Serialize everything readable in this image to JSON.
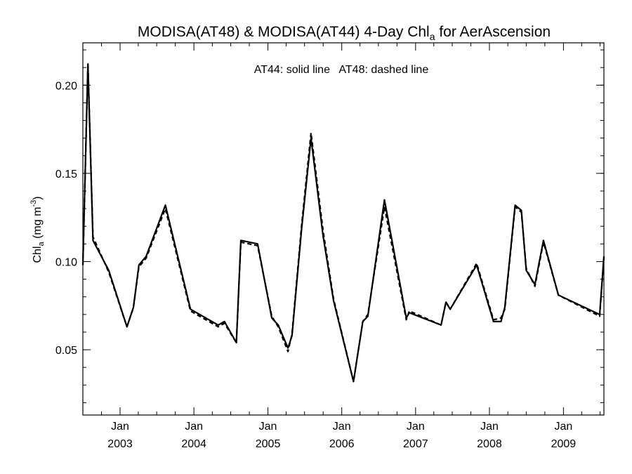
{
  "chart_data": {
    "type": "line",
    "title": {
      "prefix": "MODISA(AT48) & MODISA(AT44) 4-Day Chl",
      "subscript": "a",
      "suffix": " for AerAscension"
    },
    "annotation": "AT44: solid line   AT48: dashed line",
    "ylabel": {
      "prefix": "Chl",
      "subscript": "a",
      "suffix": " (mg m",
      "superscript": "-3",
      "close": ")"
    },
    "xlim": [
      "2002-07-01",
      "2009-07-20"
    ],
    "ylim": [
      0.013,
      0.224
    ],
    "y_ticks": [
      "0.05",
      "0.10",
      "0.15",
      "0.20"
    ],
    "y_minor_step": 0.01,
    "x_ticks": [
      {
        "date": "2003-01-01",
        "month": "Jan",
        "year": "2003"
      },
      {
        "date": "2004-01-01",
        "month": "Jan",
        "year": "2004"
      },
      {
        "date": "2005-01-01",
        "month": "Jan",
        "year": "2005"
      },
      {
        "date": "2006-01-01",
        "month": "Jan",
        "year": "2006"
      },
      {
        "date": "2007-01-01",
        "month": "Jan",
        "year": "2007"
      },
      {
        "date": "2008-01-01",
        "month": "Jan",
        "year": "2008"
      },
      {
        "date": "2009-01-01",
        "month": "Jan",
        "year": "2009"
      }
    ],
    "series": [
      {
        "name": "AT44",
        "style": "solid",
        "color": "#000000",
        "x": [
          "2002-07-01",
          "2002-07-26",
          "2002-08-20",
          "2002-11-06",
          "2003-02-04",
          "2003-03-08",
          "2003-04-04",
          "2003-05-10",
          "2003-08-13",
          "2003-12-15",
          "2004-04-30",
          "2004-05-31",
          "2004-07-29",
          "2004-08-20",
          "2004-11-11",
          "2005-01-20",
          "2005-02-21",
          "2005-04-10",
          "2005-04-30",
          "2005-06-16",
          "2005-08-02",
          "2005-09-30",
          "2005-11-21",
          "2006-02-28",
          "2006-04-15",
          "2006-05-10",
          "2006-07-31",
          "2006-11-16",
          "2006-12-01",
          "2007-05-07",
          "2007-05-31",
          "2007-06-21",
          "2007-10-30",
          "2008-01-21",
          "2008-02-27",
          "2008-03-17",
          "2008-05-07",
          "2008-06-07",
          "2008-07-01",
          "2008-08-13",
          "2008-09-24",
          "2008-12-07",
          "2009-06-29",
          "2009-07-20"
        ],
        "y": [
          0.098,
          0.212,
          0.112,
          0.095,
          0.063,
          0.074,
          0.098,
          0.103,
          0.132,
          0.073,
          0.064,
          0.066,
          0.054,
          0.112,
          0.11,
          0.068,
          0.064,
          0.051,
          0.058,
          0.118,
          0.17,
          0.115,
          0.078,
          0.032,
          0.066,
          0.069,
          0.135,
          0.068,
          0.071,
          0.064,
          0.077,
          0.073,
          0.098,
          0.066,
          0.066,
          0.074,
          0.132,
          0.129,
          0.095,
          0.087,
          0.112,
          0.081,
          0.07,
          0.103
        ]
      },
      {
        "name": "AT48",
        "style": "dashed",
        "color": "#000000",
        "x": [
          "2002-07-01",
          "2002-07-26",
          "2002-08-20",
          "2002-11-06",
          "2003-02-04",
          "2003-03-08",
          "2003-04-04",
          "2003-05-10",
          "2003-08-13",
          "2003-12-15",
          "2004-04-30",
          "2004-05-31",
          "2004-07-29",
          "2004-08-20",
          "2004-11-11",
          "2005-01-20",
          "2005-02-21",
          "2005-04-10",
          "2005-04-30",
          "2005-06-16",
          "2005-08-02",
          "2005-09-30",
          "2005-11-21",
          "2006-02-28",
          "2006-04-15",
          "2006-05-10",
          "2006-07-31",
          "2006-11-16",
          "2006-12-01",
          "2007-05-07",
          "2007-05-31",
          "2007-06-21",
          "2007-10-30",
          "2008-01-21",
          "2008-02-27",
          "2008-03-17",
          "2008-05-07",
          "2008-06-07",
          "2008-07-01",
          "2008-08-13",
          "2008-09-24",
          "2008-12-07",
          "2009-06-29",
          "2009-07-20"
        ],
        "y": [
          0.098,
          0.212,
          0.114,
          0.094,
          0.063,
          0.074,
          0.097,
          0.102,
          0.13,
          0.072,
          0.063,
          0.065,
          0.054,
          0.111,
          0.109,
          0.069,
          0.063,
          0.049,
          0.059,
          0.12,
          0.173,
          0.118,
          0.079,
          0.032,
          0.066,
          0.07,
          0.131,
          0.067,
          0.072,
          0.064,
          0.077,
          0.073,
          0.099,
          0.067,
          0.068,
          0.073,
          0.131,
          0.128,
          0.096,
          0.086,
          0.111,
          0.081,
          0.069,
          0.102
        ]
      }
    ]
  }
}
